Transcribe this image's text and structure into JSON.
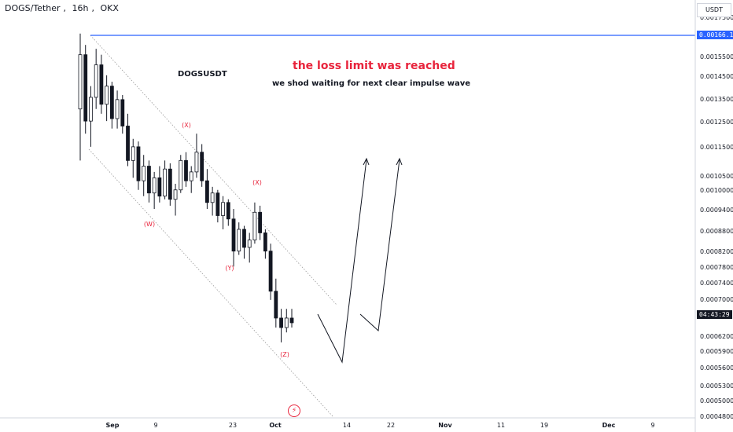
{
  "header": {
    "pair": "DOGS/Tether",
    "interval": "16h",
    "exchange": "OKX"
  },
  "annotations": {
    "symbol": "DOGSUSDT",
    "headline": "the loss limit was reached",
    "note": "we shod waiting for next clear impulse wave"
  },
  "price_axis": {
    "currency": "USDT",
    "current_price_line": "0.00166.15",
    "countdown": "04:43:29"
  },
  "colors": {
    "up": "#131722",
    "down": "#131722",
    "accent_red": "#e8243c",
    "resistance_blue": "#2962ff"
  },
  "icons": {
    "flash": "lightning-icon"
  },
  "chart_data": {
    "type": "candlestick",
    "title": "",
    "xlabel": "",
    "ylabel": "",
    "y_scale": "log",
    "ylim": [
      0.00048,
      0.00178
    ],
    "grid": false,
    "y_ticks": [
      "0.0017500",
      "0.0015500",
      "0.0014500",
      "0.0013500",
      "0.0012500",
      "0.0011500",
      "0.0010500",
      "0.0010000",
      "0.0009400",
      "0.0008800",
      "0.0008200",
      "0.0007800",
      "0.0007400",
      "0.0007000",
      "0.0006200",
      "0.0005900",
      "0.0005600",
      "0.0005300",
      "0.0005000",
      "0.0004800"
    ],
    "x_ticks": [
      {
        "label": "Sep",
        "bold": true
      },
      {
        "label": "9",
        "bold": false
      },
      {
        "label": "23",
        "bold": false
      },
      {
        "label": "Oct",
        "bold": true
      },
      {
        "label": "14",
        "bold": false
      },
      {
        "label": "22",
        "bold": false
      },
      {
        "label": "Nov",
        "bold": true
      },
      {
        "label": "11",
        "bold": false
      },
      {
        "label": "19",
        "bold": false
      },
      {
        "label": "Dec",
        "bold": true
      },
      {
        "label": "9",
        "bold": false
      }
    ],
    "horizontal_line": 0.0016615,
    "wave_labels": [
      "(X)",
      "(W)",
      "(X)",
      "(Y)",
      "(Z)"
    ],
    "candles": [
      [
        0.0013,
        0.00166,
        0.0011,
        0.00155
      ],
      [
        0.00155,
        0.0016,
        0.0012,
        0.00125
      ],
      [
        0.00125,
        0.0014,
        0.00115,
        0.00135
      ],
      [
        0.00135,
        0.00158,
        0.0013,
        0.0015
      ],
      [
        0.0015,
        0.00155,
        0.00128,
        0.00132
      ],
      [
        0.00132,
        0.00145,
        0.00125,
        0.0014
      ],
      [
        0.0014,
        0.00142,
        0.00122,
        0.00126
      ],
      [
        0.00126,
        0.00138,
        0.00122,
        0.00134
      ],
      [
        0.00134,
        0.00136,
        0.0012,
        0.00123
      ],
      [
        0.00123,
        0.00128,
        0.00108,
        0.0011
      ],
      [
        0.0011,
        0.00118,
        0.00104,
        0.00115
      ],
      [
        0.00115,
        0.00117,
        0.001,
        0.00103
      ],
      [
        0.00103,
        0.00112,
        0.00098,
        0.00108
      ],
      [
        0.00108,
        0.0011,
        0.00096,
        0.00099
      ],
      [
        0.00099,
        0.00106,
        0.00094,
        0.00104
      ],
      [
        0.00104,
        0.00108,
        0.00096,
        0.00098
      ],
      [
        0.00098,
        0.0011,
        0.00097,
        0.00107
      ],
      [
        0.00107,
        0.00109,
        0.00095,
        0.00097
      ],
      [
        0.00097,
        0.00102,
        0.00092,
        0.001
      ],
      [
        0.001,
        0.00112,
        0.00099,
        0.0011
      ],
      [
        0.0011,
        0.00113,
        0.00101,
        0.00103
      ],
      [
        0.00103,
        0.00108,
        0.00099,
        0.00106
      ],
      [
        0.00106,
        0.0012,
        0.00104,
        0.00113
      ],
      [
        0.00113,
        0.00116,
        0.00101,
        0.00103
      ],
      [
        0.00103,
        0.00107,
        0.00094,
        0.00096
      ],
      [
        0.00096,
        0.00101,
        0.00092,
        0.00099
      ],
      [
        0.00099,
        0.001,
        0.0009,
        0.00092
      ],
      [
        0.00092,
        0.00098,
        0.00088,
        0.00096
      ],
      [
        0.00096,
        0.00097,
        0.00089,
        0.00091
      ],
      [
        0.00091,
        0.00094,
        0.00078,
        0.00082
      ],
      [
        0.00082,
        0.0009,
        0.00081,
        0.00088
      ],
      [
        0.00088,
        0.00089,
        0.0008,
        0.00083
      ],
      [
        0.00083,
        0.00087,
        0.00079,
        0.00085
      ],
      [
        0.00085,
        0.00096,
        0.00084,
        0.00093
      ],
      [
        0.00093,
        0.00095,
        0.00085,
        0.00087
      ],
      [
        0.00087,
        0.00088,
        0.0008,
        0.00082
      ],
      [
        0.00082,
        0.00084,
        0.0007,
        0.00072
      ],
      [
        0.00072,
        0.00075,
        0.00064,
        0.00066
      ],
      [
        0.00066,
        0.00068,
        0.00061,
        0.00064
      ],
      [
        0.00064,
        0.00068,
        0.00063,
        0.00066
      ],
      [
        0.00066,
        0.00068,
        0.00064,
        0.00065
      ]
    ],
    "channel": {
      "upper": [
        [
          0.0,
          0.00166
        ],
        [
          1.0,
          0.00069
        ]
      ],
      "lower": [
        [
          0.0,
          0.00115
        ],
        [
          1.0,
          0.000475
        ]
      ]
    },
    "projection_paths": [
      [
        [
          0.00066
        ],
        [
          0.00057
        ],
        [
          0.00108
        ]
      ],
      [
        [
          0.00066
        ],
        [
          0.00063
        ],
        [
          0.00108
        ]
      ]
    ]
  }
}
